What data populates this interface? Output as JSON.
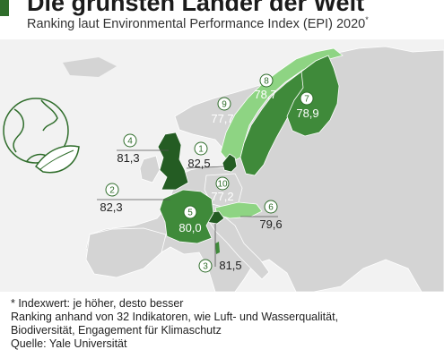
{
  "title": "Die grünsten Länder der Welt",
  "subtitle": "Ranking laut Environmental Performance Index (EPI) 2020",
  "subtitle_mark": "*",
  "colors": {
    "land_base": "#d4d4d4",
    "dark_green": "#245c23",
    "mid_green": "#3f8a3a",
    "light_green": "#8ed483",
    "sea": "#f2f2f2",
    "title_bar": "#2f6d2b"
  },
  "rankings": [
    {
      "rank": "1",
      "value": "82,5"
    },
    {
      "rank": "2",
      "value": "82,3"
    },
    {
      "rank": "3",
      "value": "81,5"
    },
    {
      "rank": "4",
      "value": "81,3"
    },
    {
      "rank": "5",
      "value": "80,0"
    },
    {
      "rank": "6",
      "value": "79,6"
    },
    {
      "rank": "7",
      "value": "78,9"
    },
    {
      "rank": "8",
      "value": "78,7"
    },
    {
      "rank": "9",
      "value": "77,7"
    },
    {
      "rank": "10",
      "value": "77,2"
    }
  ],
  "footer": {
    "note": "* Indexwert: je höher, desto besser",
    "method_line1": "Ranking anhand von 32 Indikatoren, wie Luft- und Wasserqualität,",
    "method_line2": "Biodiversität, Engagement für Klimaschutz",
    "source": "Quelle: Yale Universität"
  },
  "decoration": {
    "icon": "globe-leaf-icon"
  }
}
